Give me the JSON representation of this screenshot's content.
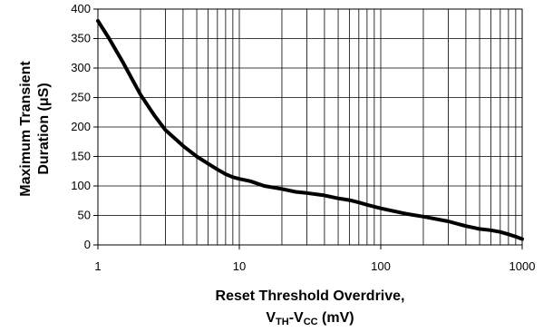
{
  "chart_data": {
    "type": "line",
    "title": "",
    "xscale": "log",
    "xlim": [
      1,
      1000
    ],
    "ylim": [
      0,
      400
    ],
    "grid": true,
    "xlabel": {
      "line1": "Reset Threshold Overdrive,",
      "line2": {
        "v1": "V",
        "s1": "TH",
        "dash": "-",
        "v2": "V",
        "s2": "CC",
        "unit": " (mV)"
      }
    },
    "ylabel": {
      "line1": "Maximum Transient",
      "line2": "Duration (μS)"
    },
    "xticks": [
      "1",
      "10",
      "100",
      "1000"
    ],
    "xtick_values": [
      1,
      10,
      100,
      1000
    ],
    "yticks": [
      "0",
      "50",
      "100",
      "150",
      "200",
      "250",
      "300",
      "350",
      "400"
    ],
    "ytick_values": [
      0,
      50,
      100,
      150,
      200,
      250,
      300,
      350,
      400
    ],
    "series": [
      {
        "x": [
          1,
          1.2,
          1.5,
          2,
          2.5,
          3,
          4,
          5,
          6,
          7,
          8,
          9,
          10,
          12,
          15,
          20,
          25,
          30,
          40,
          50,
          60,
          70,
          80,
          100,
          150,
          200,
          300,
          400,
          500,
          600,
          700,
          800,
          900,
          1000
        ],
        "y": [
          380,
          350,
          310,
          255,
          220,
          195,
          168,
          150,
          138,
          128,
          120,
          115,
          112,
          108,
          100,
          95,
          90,
          88,
          84,
          79,
          76,
          72,
          68,
          62,
          53,
          48,
          40,
          32,
          27,
          25,
          22,
          18,
          14,
          10
        ],
        "color": "#000000"
      }
    ]
  }
}
